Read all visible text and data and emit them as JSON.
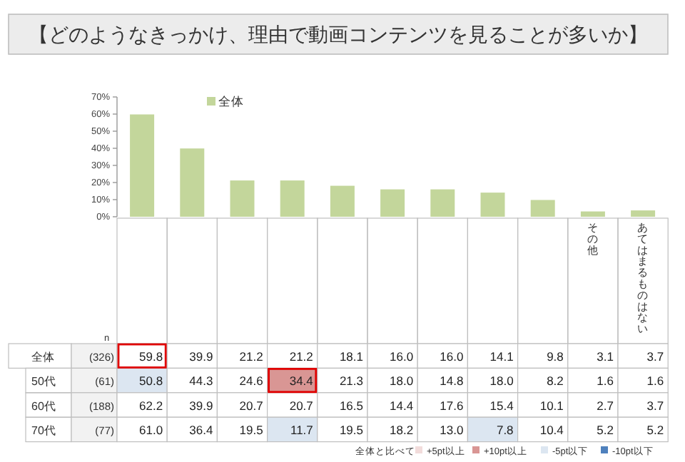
{
  "chart_data": [
    {
      "type": "bar",
      "title": "【どのようなきっかけ、理由で動画コンテンツを見ることが多いか】",
      "categories": [
        null,
        null,
        null,
        null,
        null,
        null,
        null,
        null,
        null,
        "その他",
        "あてはまるものはない"
      ],
      "series": [
        {
          "name": "全体",
          "color": "#c3d69b",
          "values": [
            59.8,
            39.9,
            21.2,
            21.2,
            18.1,
            16.0,
            16.0,
            14.1,
            9.8,
            3.1,
            3.7
          ]
        }
      ],
      "ylim": [
        0,
        70
      ],
      "yticks": [
        {
          "value": 0,
          "label": "0%"
        },
        {
          "value": 10,
          "label": "10%"
        },
        {
          "value": 20,
          "label": "20%"
        },
        {
          "value": 30,
          "label": "30%"
        },
        {
          "value": 40,
          "label": "40%"
        },
        {
          "value": 50,
          "label": "50%"
        },
        {
          "value": 60,
          "label": "60%"
        },
        {
          "value": 70,
          "label": "70%"
        }
      ],
      "legend": "top left"
    },
    {
      "type": "heatmap",
      "categories": [
        null,
        null,
        null,
        null,
        null,
        null,
        null,
        null,
        null,
        null,
        null
      ],
      "y_categories": [
        "全体",
        "50代",
        "60代",
        "70代"
      ],
      "y2_categories": [
        "(326)",
        "(61)",
        "(188)",
        "(77)"
      ],
      "cells": [
        [
          59.8,
          39.9,
          21.2,
          21.2,
          18.1,
          16.0,
          16.0,
          14.1,
          9.8,
          3.1,
          3.7
        ],
        [
          50.8,
          44.3,
          24.6,
          34.4,
          21.3,
          18.0,
          14.8,
          18.0,
          8.2,
          1.6,
          1.6
        ],
        [
          62.2,
          39.9,
          20.7,
          20.7,
          16.5,
          14.4,
          17.6,
          15.4,
          10.1,
          2.7,
          3.7
        ],
        [
          61.0,
          36.4,
          19.5,
          11.7,
          19.5,
          18.2,
          13.0,
          7.8,
          10.4,
          5.2,
          5.2
        ]
      ],
      "cell_labels": [
        [
          "59.8",
          "39.9",
          "21.2",
          "21.2",
          "18.1",
          "16.0",
          "16.0",
          "14.1",
          "9.8",
          "3.1",
          "3.7"
        ],
        [
          "50.8",
          "44.3",
          "24.6",
          "34.4",
          "21.3",
          "18.0",
          "14.8",
          "18.0",
          "8.2",
          "1.6",
          "1.6"
        ],
        [
          "62.2",
          "39.9",
          "20.7",
          "20.7",
          "16.5",
          "14.4",
          "17.6",
          "15.4",
          "10.1",
          "2.7",
          "3.7"
        ],
        [
          "61.0",
          "36.4",
          "19.5",
          "11.7",
          "19.5",
          "18.2",
          "13.0",
          "7.8",
          "10.4",
          "5.2",
          "5.2"
        ]
      ],
      "annotations": [
        "n",
        "全体と比べて",
        "+5pt以上",
        "+10pt以上",
        "-5pt以下",
        "-10pt以下"
      ]
    }
  ]
}
